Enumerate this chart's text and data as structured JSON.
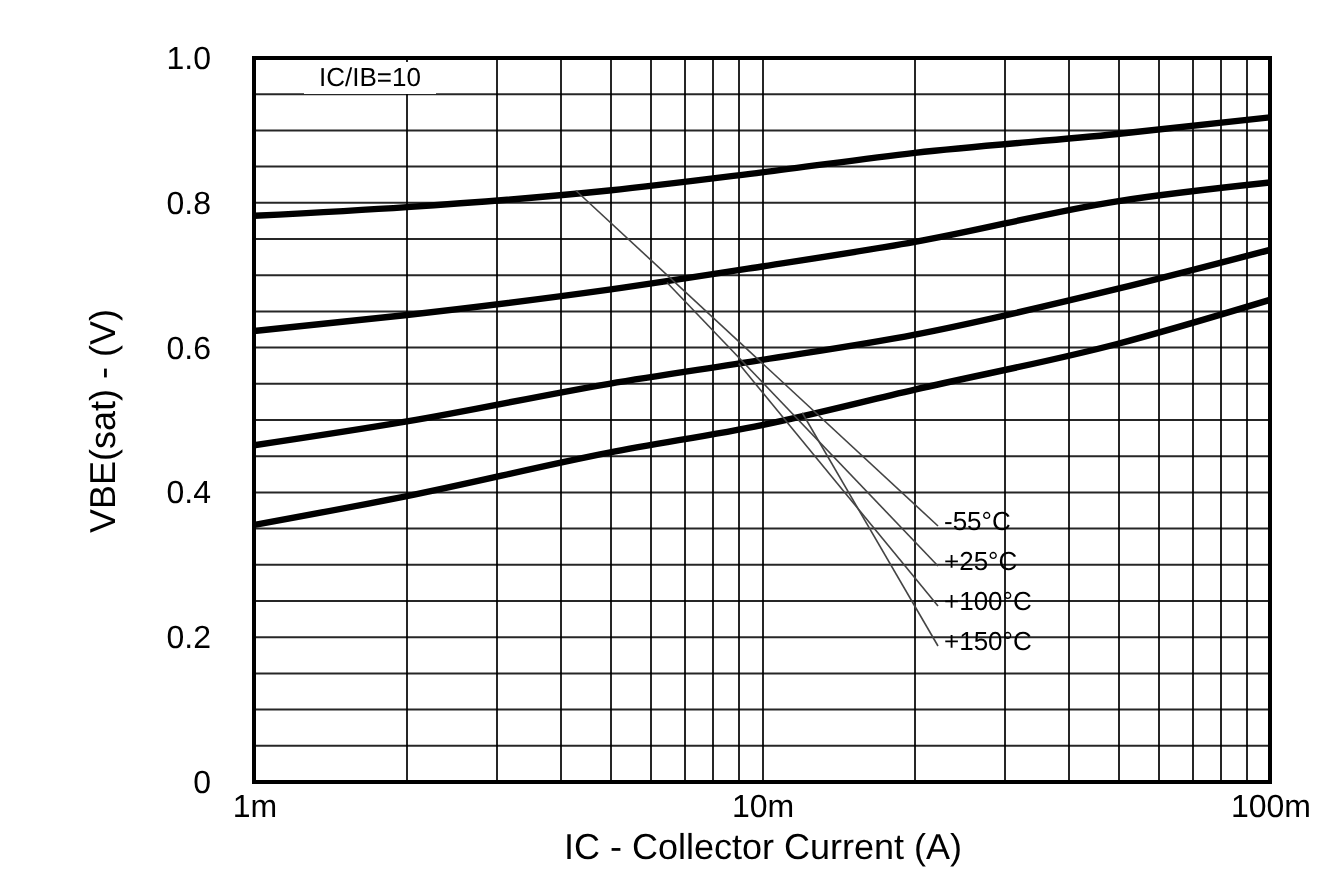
{
  "chart_data": {
    "type": "line",
    "xlabel": "IC - Collector Current (A)",
    "ylabel": "VBE(sat) - (V)",
    "log": "x",
    "grid": true,
    "marker": "none",
    "line_style": "solid",
    "x": [
      1,
      2,
      5,
      10,
      20,
      50,
      100
    ],
    "series": [
      {
        "color": "#000000",
        "values": [
          0.782,
          0.794,
          0.817,
          0.842,
          0.869,
          0.895,
          0.918
        ]
      },
      {
        "color": "#000000",
        "values": [
          0.623,
          0.645,
          0.68,
          0.712,
          0.746,
          0.802,
          0.828
        ]
      },
      {
        "color": "#000000",
        "values": [
          0.465,
          0.498,
          0.55,
          0.583,
          0.618,
          0.681,
          0.735
        ]
      },
      {
        "color": "#000000",
        "values": [
          0.355,
          0.395,
          0.455,
          0.493,
          0.542,
          0.605,
          0.666
        ]
      }
    ],
    "xlim": [
      1,
      100
    ],
    "xticks": [
      {
        "value": 1,
        "label": "1m"
      },
      {
        "value": 2,
        "label": null
      },
      {
        "value": 3,
        "label": null
      },
      {
        "value": 4,
        "label": null
      },
      {
        "value": 5,
        "label": null
      },
      {
        "value": 6,
        "label": null
      },
      {
        "value": 7,
        "label": null
      },
      {
        "value": 8,
        "label": null
      },
      {
        "value": 9,
        "label": null
      },
      {
        "value": 10,
        "label": "10m"
      },
      {
        "value": 20,
        "label": null
      },
      {
        "value": 30,
        "label": null
      },
      {
        "value": 40,
        "label": null
      },
      {
        "value": 50,
        "label": null
      },
      {
        "value": 60,
        "label": null
      },
      {
        "value": 70,
        "label": null
      },
      {
        "value": 80,
        "label": null
      },
      {
        "value": 90,
        "label": null
      },
      {
        "value": 100,
        "label": "100m"
      }
    ],
    "ylim": [
      0,
      1.0
    ],
    "yticks": [
      0,
      {
        "value": 0.05,
        "label": null
      },
      {
        "value": 0.1,
        "label": null
      },
      {
        "value": 0.15,
        "label": null
      },
      0.2,
      {
        "value": 0.25,
        "label": null
      },
      {
        "value": 0.3,
        "label": null
      },
      {
        "value": 0.35,
        "label": null
      },
      0.4,
      {
        "value": 0.45,
        "label": null
      },
      {
        "value": 0.5,
        "label": null
      },
      {
        "value": 0.55,
        "label": null
      },
      0.6,
      {
        "value": 0.65,
        "label": null
      },
      {
        "value": 0.7,
        "label": null
      },
      {
        "value": 0.75,
        "label": null
      },
      0.8,
      {
        "value": 0.85,
        "label": null
      },
      {
        "value": 0.9,
        "label": null
      },
      {
        "value": 0.95,
        "label": null
      },
      {
        "value": 1.0,
        "label": "1.0"
      }
    ],
    "annotations": [
      "IC/IB=10",
      {
        "text": "-55°C",
        "x": 4.3,
        "y": 0.817
      },
      {
        "text": "+25°C",
        "x": 6.5,
        "y": 0.69
      },
      {
        "text": "+100°C",
        "x": 9,
        "y": 0.578
      },
      {
        "text": "+150°C",
        "x": 12,
        "y": 0.51
      }
    ]
  }
}
